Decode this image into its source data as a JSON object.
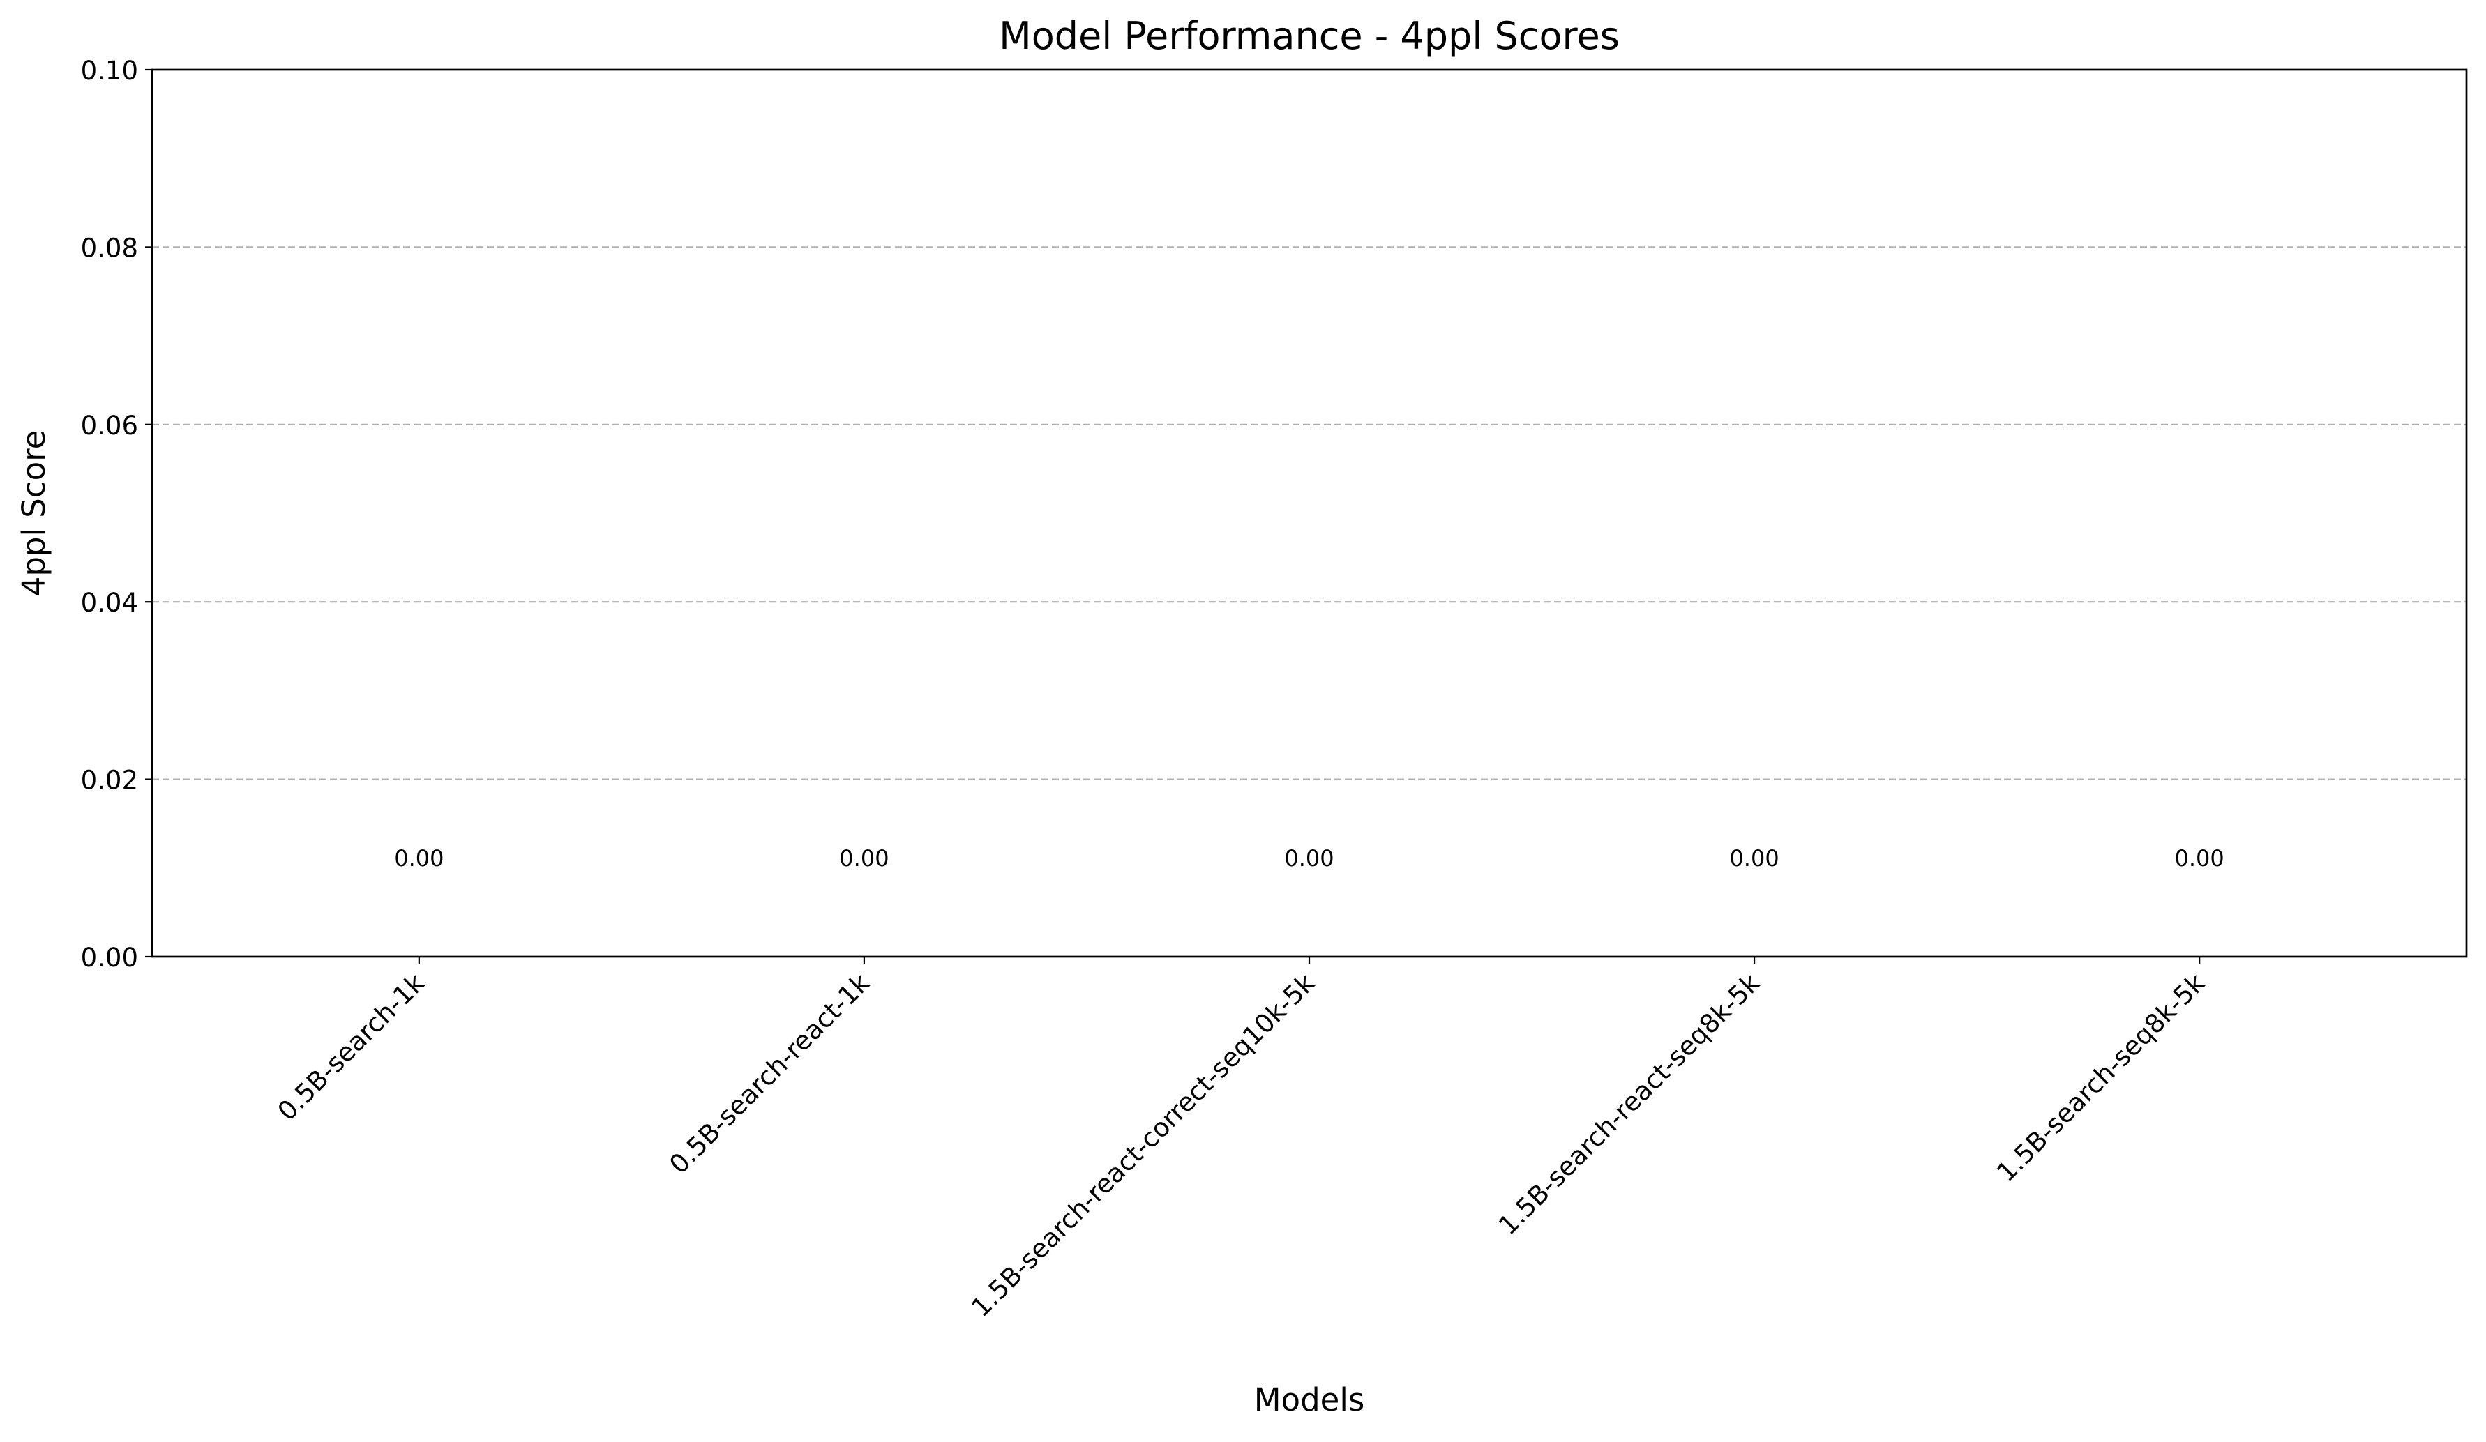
{
  "chart_data": {
    "type": "bar",
    "title": "Model Performance - 4ppl Scores",
    "xlabel": "Models",
    "ylabel": "4ppl Score",
    "categories": [
      "0.5B-search-1k",
      "0.5B-search-react-1k",
      "1.5B-search-react-correct-seq10k-5k",
      "1.5B-search-react-seq8k-5k",
      "1.5B-search-seq8k-5k"
    ],
    "values": [
      0.0,
      0.0,
      0.0,
      0.0,
      0.0
    ],
    "data_labels": [
      "0.00",
      "0.00",
      "0.00",
      "0.00",
      "0.00"
    ],
    "ylim": [
      0.0,
      0.1
    ],
    "yticks": [
      0.0,
      0.02,
      0.04,
      0.06,
      0.08,
      0.1
    ],
    "ytick_labels": [
      "0.00",
      "0.02",
      "0.04",
      "0.06",
      "0.08",
      "0.10"
    ],
    "grid": "y-dashed",
    "bar_color": "#1f77b4",
    "grid_color": "#b0b0b0"
  }
}
